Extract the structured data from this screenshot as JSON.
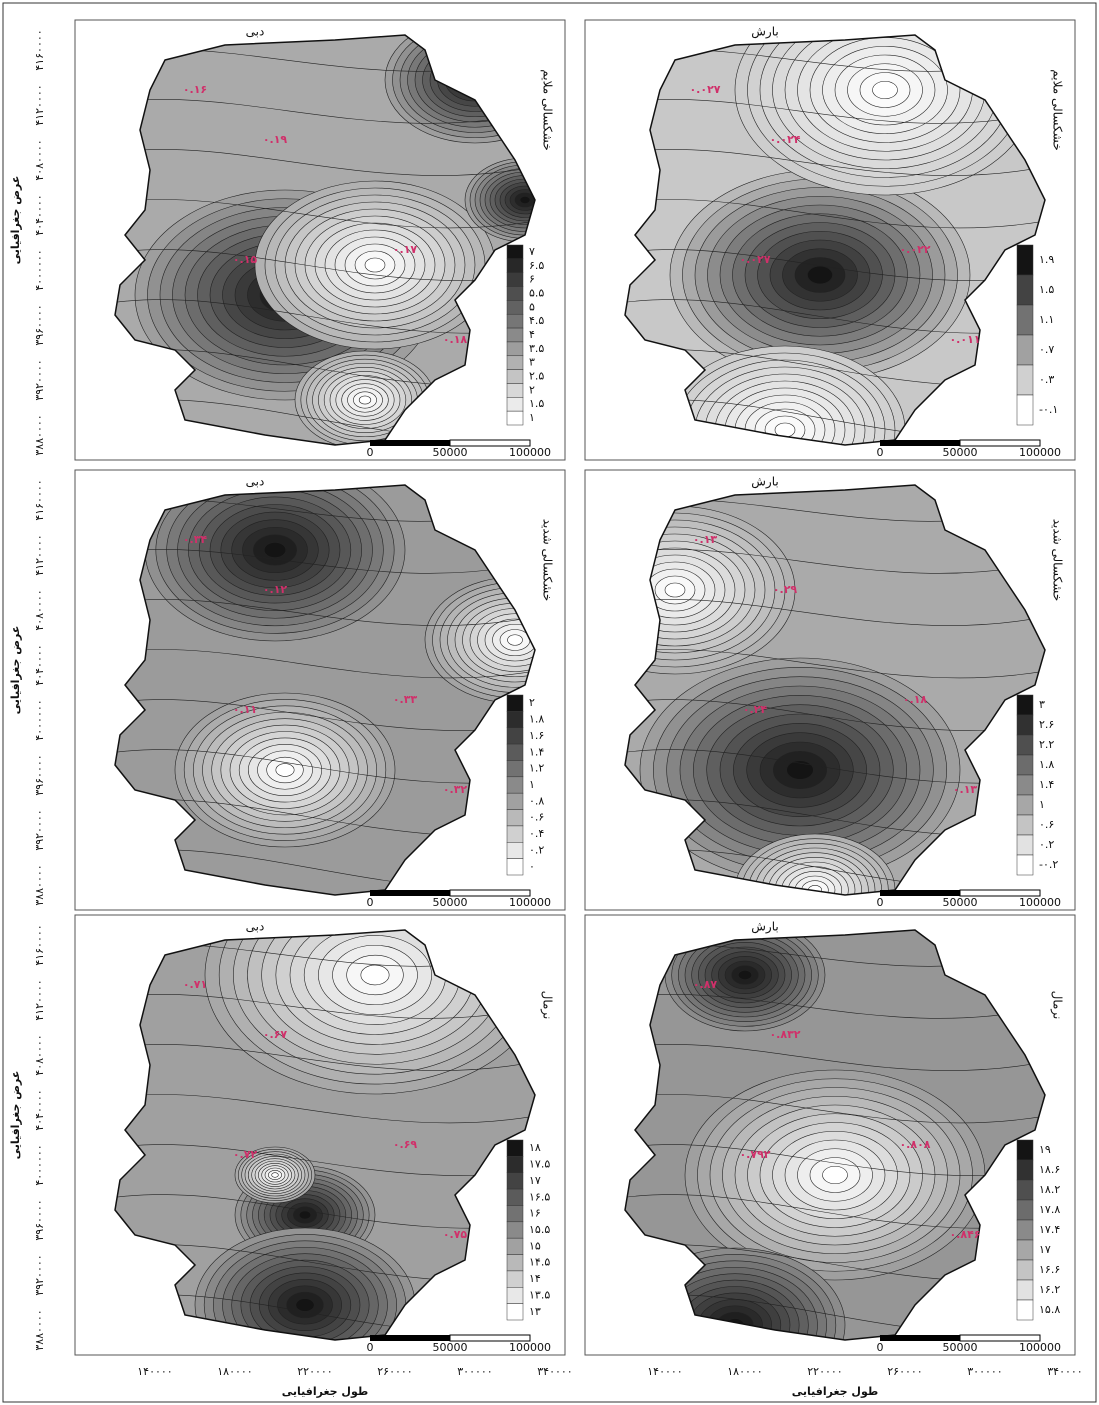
{
  "panels": [
    {
      "title": "دبی",
      "condition": "خشکسالی ملایم",
      "legend": [
        "۷",
        "۶.۵",
        "۶",
        "۵.۵",
        "۵",
        "۴.۵",
        "۴",
        "۳.۵",
        "۳",
        "۲.۵",
        "۲",
        "۱.۵",
        "۱"
      ],
      "contour_labels": [
        "۰.۱۶",
        "۰.۱۹",
        "۰.۱۷",
        "۰.۱۵",
        "۰.۱۸"
      ],
      "scale": [
        "0",
        "50000",
        "100000"
      ]
    },
    {
      "title": "بارش",
      "condition": "خشکسالی ملایم",
      "legend": [
        "۱.۹",
        "۱.۵",
        "۱.۱",
        "۰.۷",
        "۰.۳",
        "-۰.۱"
      ],
      "contour_labels": [
        "۰.۰۲۷",
        "۰.۰۲۴",
        "۰.۰۲۲",
        "۰.۰۲۷",
        "۰.۰۱۱"
      ],
      "scale": [
        "0",
        "50000",
        "100000"
      ]
    },
    {
      "title": "دبی",
      "condition": "خشکسالی شدید",
      "legend": [
        "۲",
        "۱.۸",
        "۱.۶",
        "۱.۴",
        "۱.۲",
        "۱",
        "۰.۸",
        "۰.۶",
        "۰.۴",
        "۰.۲",
        "۰"
      ],
      "contour_labels": [
        "۰.۳۴",
        "۰.۱۲",
        "۰.۳۳",
        "۰.۱۱",
        "۰.۳۲"
      ],
      "scale": [
        "0",
        "50000",
        "100000"
      ]
    },
    {
      "title": "بارش",
      "condition": "خشکسالی شدید",
      "legend": [
        "۳",
        "۲.۶",
        "۲.۲",
        "۱.۸",
        "۱.۴",
        "۱",
        "۰.۶",
        "۰.۲",
        "-۰.۲"
      ],
      "contour_labels": [
        "۰.۱۳",
        "۰.۲۹",
        "۰.۱۸",
        "۰.۲۴",
        "۰.۱۳"
      ],
      "scale": [
        "0",
        "50000",
        "100000"
      ]
    },
    {
      "title": "دبی",
      "condition": "نرمال",
      "legend": [
        "۱۸",
        "۱۷.۵",
        "۱۷",
        "۱۶.۵",
        "۱۶",
        "۱۵.۵",
        "۱۵",
        "۱۴.۵",
        "۱۴",
        "۱۳.۵",
        "۱۳"
      ],
      "contour_labels": [
        "۰.۷۱",
        "۰.۶۷",
        "۰.۶۹",
        "۰.۷۲",
        "۰.۷۵"
      ],
      "scale": [
        "0",
        "50000",
        "100000"
      ]
    },
    {
      "title": "بارش",
      "condition": "نرمال",
      "legend": [
        "۱۹",
        "۱۸.۶",
        "۱۸.۲",
        "۱۷.۸",
        "۱۷.۴",
        "۱۷",
        "۱۶.۶",
        "۱۶.۲",
        "۱۵.۸"
      ],
      "contour_labels": [
        "۰.۸۷",
        "۰.۸۳۲",
        "۰.۸۰۸",
        "۰.۷۹۲",
        "۰.۸۴۶"
      ],
      "scale": [
        "0",
        "50000",
        "100000"
      ]
    }
  ],
  "y_axis": {
    "title": "عرض جغرافیایی",
    "ticks": [
      "۴۱۶۰۰۰۰",
      "۴۱۲۰۰۰۰",
      "۴۰۸۰۰۰۰",
      "۴۰۴۰۰۰۰",
      "۴۰۰۰۰۰۰",
      "۳۹۶۰۰۰۰",
      "۳۹۲۰۰۰۰",
      "۳۸۸۰۰۰۰"
    ]
  },
  "x_axis": {
    "title": "طول جغرافیایی",
    "ticks": [
      "۱۴۰۰۰۰",
      "۱۸۰۰۰۰",
      "۲۲۰۰۰۰",
      "۲۶۰۰۰۰",
      "۳۰۰۰۰۰",
      "۳۴۰۰۰۰"
    ]
  }
}
